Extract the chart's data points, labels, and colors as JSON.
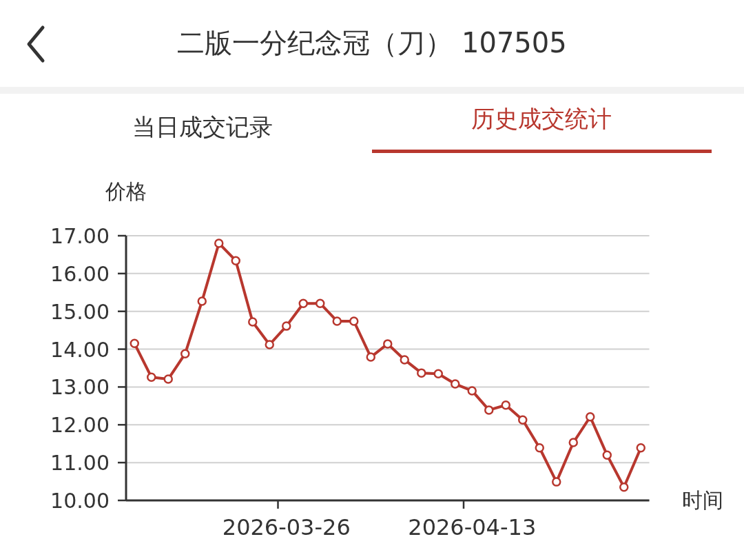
{
  "chart_data": {
    "type": "line",
    "title": "二版一分纪念冠（刀） 107505",
    "annotations": [
      "当日成交记录",
      "历史成交统计"
    ],
    "ylabel": "价格",
    "xlabel": "时间",
    "categories": [
      null,
      null,
      null,
      null,
      null,
      null,
      null,
      null,
      null,
      "2026-03-26",
      null,
      null,
      null,
      null,
      null,
      null,
      null,
      null,
      null,
      null,
      "2026-04-13",
      null,
      null,
      null,
      null,
      null,
      null,
      null,
      null,
      null,
      null
    ],
    "series": [
      {
        "color": "#b8372e",
        "values": [
          14.15,
          13.26,
          13.21,
          13.88,
          15.27,
          16.8,
          16.34,
          14.72,
          14.12,
          14.61,
          15.21,
          15.21,
          14.74,
          14.74,
          13.79,
          14.14,
          13.72,
          13.37,
          13.35,
          13.08,
          12.9,
          12.39,
          12.52,
          12.13,
          11.39,
          10.49,
          11.53,
          12.21,
          11.2,
          10.35,
          11.39
        ]
      }
    ],
    "ylim": [
      10,
      17
    ],
    "yticks": [
      {
        "value": 10,
        "label": "10.00"
      },
      {
        "value": 11,
        "label": "11.00"
      },
      {
        "value": 12,
        "label": "12.00"
      },
      {
        "value": 13,
        "label": "13.00"
      },
      {
        "value": 14,
        "label": "14.00"
      },
      {
        "value": 15,
        "label": "15.00"
      },
      {
        "value": 16,
        "label": "16.00"
      },
      {
        "value": 17,
        "label": "17.00"
      }
    ],
    "grid": "y",
    "marker": "circle",
    "line_style": "solid"
  }
}
